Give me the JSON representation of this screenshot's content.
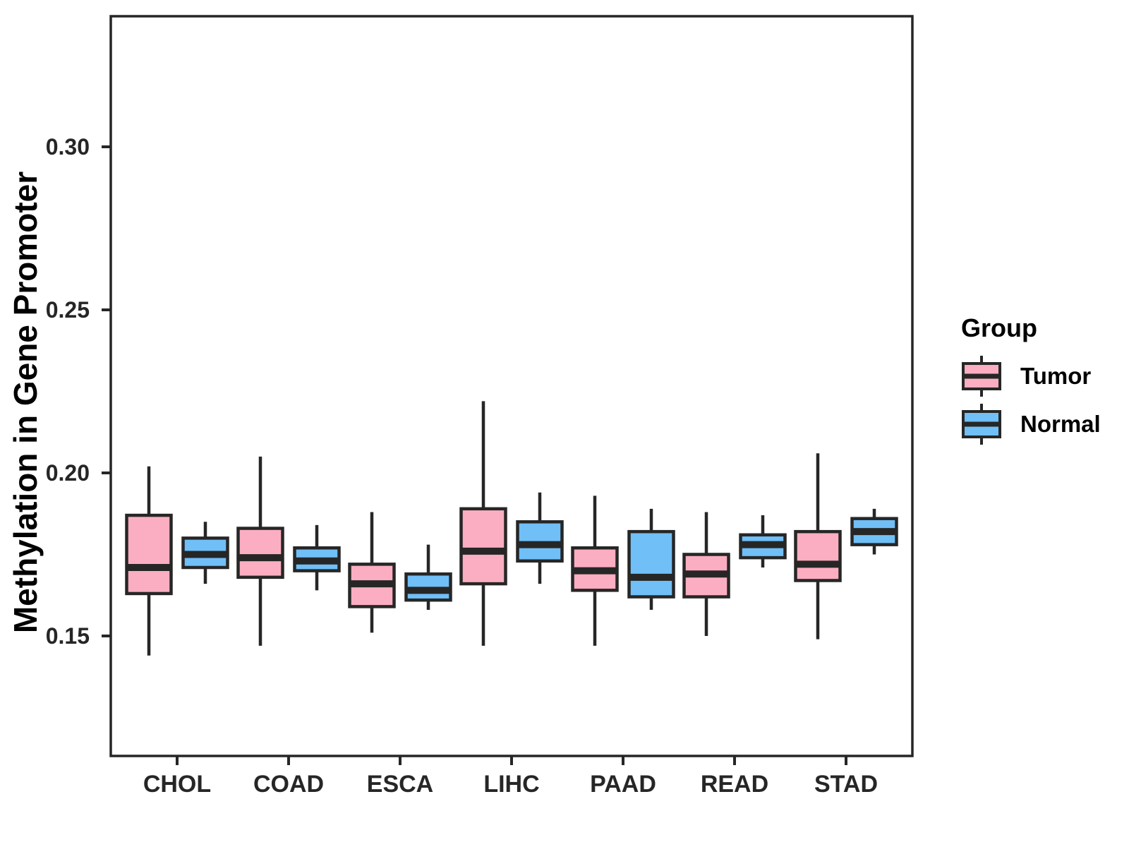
{
  "chart_data": {
    "type": "boxplot",
    "title": "",
    "xlabel": "",
    "ylabel": "Methylation in Gene Promoter",
    "categories": [
      "CHOL",
      "COAD",
      "ESCA",
      "LIHC",
      "PAAD",
      "READ",
      "STAD"
    ],
    "y_ticks": [
      {
        "value": 0.15,
        "label": "0.15"
      },
      {
        "value": 0.2,
        "label": "0.20"
      },
      {
        "value": 0.25,
        "label": "0.25"
      },
      {
        "value": 0.3,
        "label": "0.30"
      }
    ],
    "ylim": [
      0.113,
      0.34
    ],
    "grid": false,
    "legend_position": "right",
    "legend": {
      "title": "Group",
      "entries": [
        {
          "label": "Tumor",
          "color": "#FBAEC1"
        },
        {
          "label": "Normal",
          "color": "#70BFF7"
        }
      ]
    },
    "series": [
      {
        "name": "Tumor",
        "color": "#FBAEC1",
        "boxes": [
          {
            "category": "CHOL",
            "min": 0.144,
            "q1": 0.163,
            "median": 0.171,
            "q3": 0.187,
            "max": 0.202
          },
          {
            "category": "COAD",
            "min": 0.147,
            "q1": 0.168,
            "median": 0.174,
            "q3": 0.183,
            "max": 0.205
          },
          {
            "category": "ESCA",
            "min": 0.151,
            "q1": 0.159,
            "median": 0.166,
            "q3": 0.172,
            "max": 0.188
          },
          {
            "category": "LIHC",
            "min": 0.147,
            "q1": 0.166,
            "median": 0.176,
            "q3": 0.189,
            "max": 0.222
          },
          {
            "category": "PAAD",
            "min": 0.147,
            "q1": 0.164,
            "median": 0.17,
            "q3": 0.177,
            "max": 0.193
          },
          {
            "category": "READ",
            "min": 0.15,
            "q1": 0.162,
            "median": 0.169,
            "q3": 0.175,
            "max": 0.188
          },
          {
            "category": "STAD",
            "min": 0.149,
            "q1": 0.167,
            "median": 0.172,
            "q3": 0.182,
            "max": 0.206
          }
        ]
      },
      {
        "name": "Normal",
        "color": "#70BFF7",
        "boxes": [
          {
            "category": "CHOL",
            "min": 0.166,
            "q1": 0.171,
            "median": 0.175,
            "q3": 0.18,
            "max": 0.185
          },
          {
            "category": "COAD",
            "min": 0.164,
            "q1": 0.17,
            "median": 0.173,
            "q3": 0.177,
            "max": 0.184
          },
          {
            "category": "ESCA",
            "min": 0.158,
            "q1": 0.161,
            "median": 0.164,
            "q3": 0.169,
            "max": 0.178
          },
          {
            "category": "LIHC",
            "min": 0.166,
            "q1": 0.173,
            "median": 0.178,
            "q3": 0.185,
            "max": 0.194
          },
          {
            "category": "PAAD",
            "min": 0.158,
            "q1": 0.162,
            "median": 0.168,
            "q3": 0.182,
            "max": 0.189
          },
          {
            "category": "READ",
            "min": 0.171,
            "q1": 0.174,
            "median": 0.178,
            "q3": 0.181,
            "max": 0.187
          },
          {
            "category": "STAD",
            "min": 0.175,
            "q1": 0.178,
            "median": 0.182,
            "q3": 0.186,
            "max": 0.189
          }
        ]
      }
    ]
  },
  "colors": {
    "stroke": "#262626",
    "text": "#262626",
    "background": "#ffffff"
  }
}
